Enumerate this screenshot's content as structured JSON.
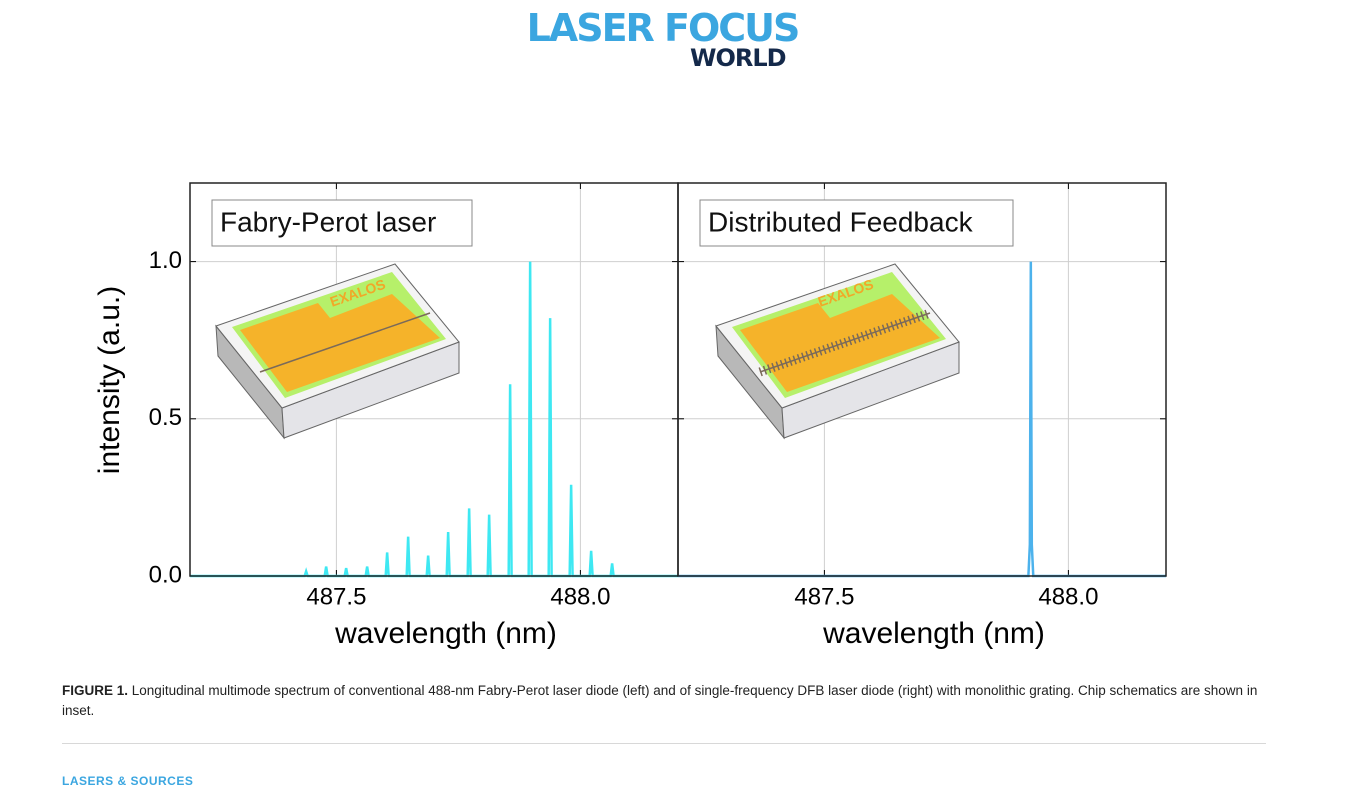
{
  "header": {
    "logo_line1": "LASER FOCUS",
    "logo_line2": "WORLD"
  },
  "chart_data": [
    {
      "type": "line",
      "title": "Fabry-Perot laser",
      "inset_label": "EXALOS",
      "y_label": "intensity (a.u.)",
      "x_label": "wavelength (nm)",
      "xlim": [
        487.2,
        488.2
      ],
      "xticks": [
        487.5,
        {
          "value": 488,
          "label": "488.0"
        }
      ],
      "ylim": [
        0,
        1.25
      ],
      "yticks": [
        {
          "value": 0,
          "label": "0.0"
        },
        0.5,
        {
          "value": 1,
          "label": "1.0"
        }
      ],
      "grid": true,
      "series": [
        {
          "color": "#3ee8f2",
          "x": [
            487.2,
            487.435,
            487.438,
            487.441,
            487.476,
            487.479,
            487.482,
            487.517,
            487.52,
            487.523,
            487.56,
            487.563,
            487.566,
            487.601,
            487.604,
            487.607,
            487.644,
            487.647,
            487.65,
            487.685,
            487.688,
            487.691,
            487.726,
            487.729,
            487.732,
            487.769,
            487.772,
            487.775,
            487.81,
            487.813,
            487.816,
            487.853,
            487.856,
            487.859,
            487.894,
            487.897,
            487.9,
            487.935,
            487.938,
            487.941,
            487.978,
            487.981,
            487.984,
            488.019,
            488.022,
            488.025,
            488.062,
            488.065,
            488.068,
            488.2
          ],
          "values": [
            0,
            0,
            0.015,
            0,
            0,
            0.03,
            0,
            0,
            0.025,
            0,
            0,
            0.03,
            0,
            0,
            0.075,
            0,
            0,
            0.125,
            0,
            0,
            0.065,
            0,
            0,
            0.14,
            0,
            0,
            0.215,
            0,
            0,
            0.195,
            0,
            0,
            0.61,
            0,
            0,
            1.0,
            0,
            0,
            0.82,
            0,
            0,
            0.29,
            0,
            0,
            0.08,
            0,
            0,
            0.04,
            0,
            0
          ]
        }
      ]
    },
    {
      "type": "line",
      "title": "Distributed Feedback",
      "inset_label": "EXALOS",
      "x_label": "wavelength (nm)",
      "xlim": [
        487.2,
        488.2
      ],
      "xticks": [
        487.5,
        {
          "value": 488,
          "label": "488.0"
        }
      ],
      "ylim": [
        0,
        1.25
      ],
      "grid": true,
      "series": [
        {
          "color": "#4cb2ec",
          "x": [
            487.2,
            487.918,
            487.921,
            487.923,
            487.925,
            487.928,
            488.2
          ],
          "values": [
            0,
            0,
            0.1,
            1.0,
            0.1,
            0,
            0
          ]
        }
      ]
    }
  ],
  "caption": {
    "label": "FIGURE 1.",
    "text": "Longitudinal multimode spectrum of conventional 488-nm Fabry-Perot laser diode (left) and of single-frequency DFB laser diode (right) with monolithic grating. Chip schematics are shown in inset."
  },
  "category": "LASERS & SOURCES"
}
